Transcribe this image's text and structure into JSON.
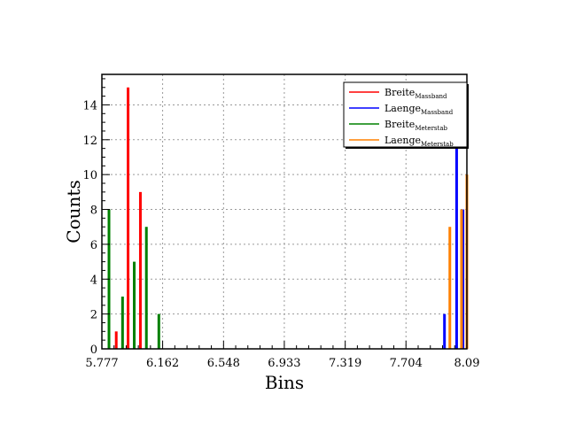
{
  "chart_data": {
    "type": "bar",
    "xlabel": "Bins",
    "ylabel": "Counts",
    "xlim": [
      5.777,
      8.09
    ],
    "ylim": [
      0,
      15.75
    ],
    "x_ticks": [
      "5.777",
      "6.162",
      "6.548",
      "6.933",
      "7.319",
      "7.704",
      "8.09"
    ],
    "y_ticks": [
      "0",
      "2",
      "4",
      "6",
      "8",
      "10",
      "12",
      "14"
    ],
    "grid": true,
    "legend_position": "top-right",
    "series": [
      {
        "name": "Breite",
        "name_sub": "Massband",
        "color": "#ff0000",
        "points": [
          {
            "x": 5.868,
            "y": 1
          },
          {
            "x": 5.943,
            "y": 15
          },
          {
            "x": 6.021,
            "y": 9
          }
        ]
      },
      {
        "name": "Laenge",
        "name_sub": "Massband",
        "color": "#0000ff",
        "points": [
          {
            "x": 7.948,
            "y": 2
          },
          {
            "x": 8.025,
            "y": 12
          },
          {
            "x": 8.065,
            "y": 8
          }
        ]
      },
      {
        "name": "Breite",
        "name_sub": "Meterstab",
        "color": "#008000",
        "points": [
          {
            "x": 5.822,
            "y": 8
          },
          {
            "x": 5.908,
            "y": 3
          },
          {
            "x": 5.982,
            "y": 5
          },
          {
            "x": 6.059,
            "y": 7
          },
          {
            "x": 6.138,
            "y": 2
          }
        ]
      },
      {
        "name": "Laenge",
        "name_sub": "Meterstab",
        "color": "#ff8000",
        "points": [
          {
            "x": 7.982,
            "y": 7
          },
          {
            "x": 8.056,
            "y": 8
          },
          {
            "x": 8.09,
            "y": 10
          }
        ]
      }
    ]
  }
}
